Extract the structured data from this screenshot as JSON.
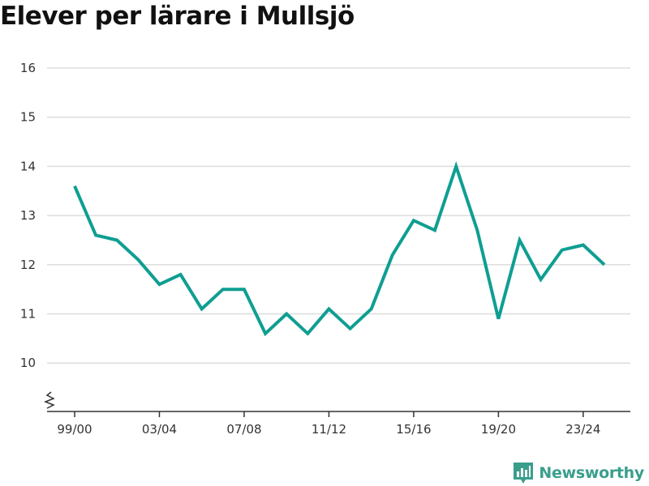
{
  "chart_data": {
    "type": "line",
    "title": "Elever per lärare i Mullsjö",
    "x": [
      "99/00",
      "00/01",
      "01/02",
      "02/03",
      "03/04",
      "04/05",
      "05/06",
      "06/07",
      "07/08",
      "08/09",
      "09/10",
      "10/11",
      "11/12",
      "12/13",
      "13/14",
      "14/15",
      "15/16",
      "16/17",
      "17/18",
      "18/19",
      "19/20",
      "20/21",
      "21/22",
      "22/23",
      "23/24",
      "24/25"
    ],
    "x_tick_labels": [
      "99/00",
      "03/04",
      "07/08",
      "11/12",
      "15/16",
      "19/20",
      "23/24"
    ],
    "series": [
      {
        "values": [
          13.6,
          12.6,
          12.5,
          12.1,
          11.6,
          11.8,
          11.1,
          11.5,
          11.5,
          10.6,
          11.0,
          10.6,
          11.1,
          10.7,
          11.1,
          12.2,
          12.9,
          12.7,
          14.0,
          12.7,
          10.9,
          12.5,
          11.7,
          12.3,
          12.4,
          12.0
        ]
      }
    ],
    "yticks": [
      10,
      11,
      12,
      13,
      14,
      15,
      16
    ],
    "ylim": [
      9,
      16
    ],
    "y_axis_break": true,
    "grid": true,
    "colors": {
      "line": "#0f9e92",
      "grid": "#dddddd",
      "axis": "#333333",
      "brand": "#3a9e8c"
    }
  },
  "brand": {
    "name": "Newsworthy",
    "icon": "newsworthy-logo-icon"
  }
}
